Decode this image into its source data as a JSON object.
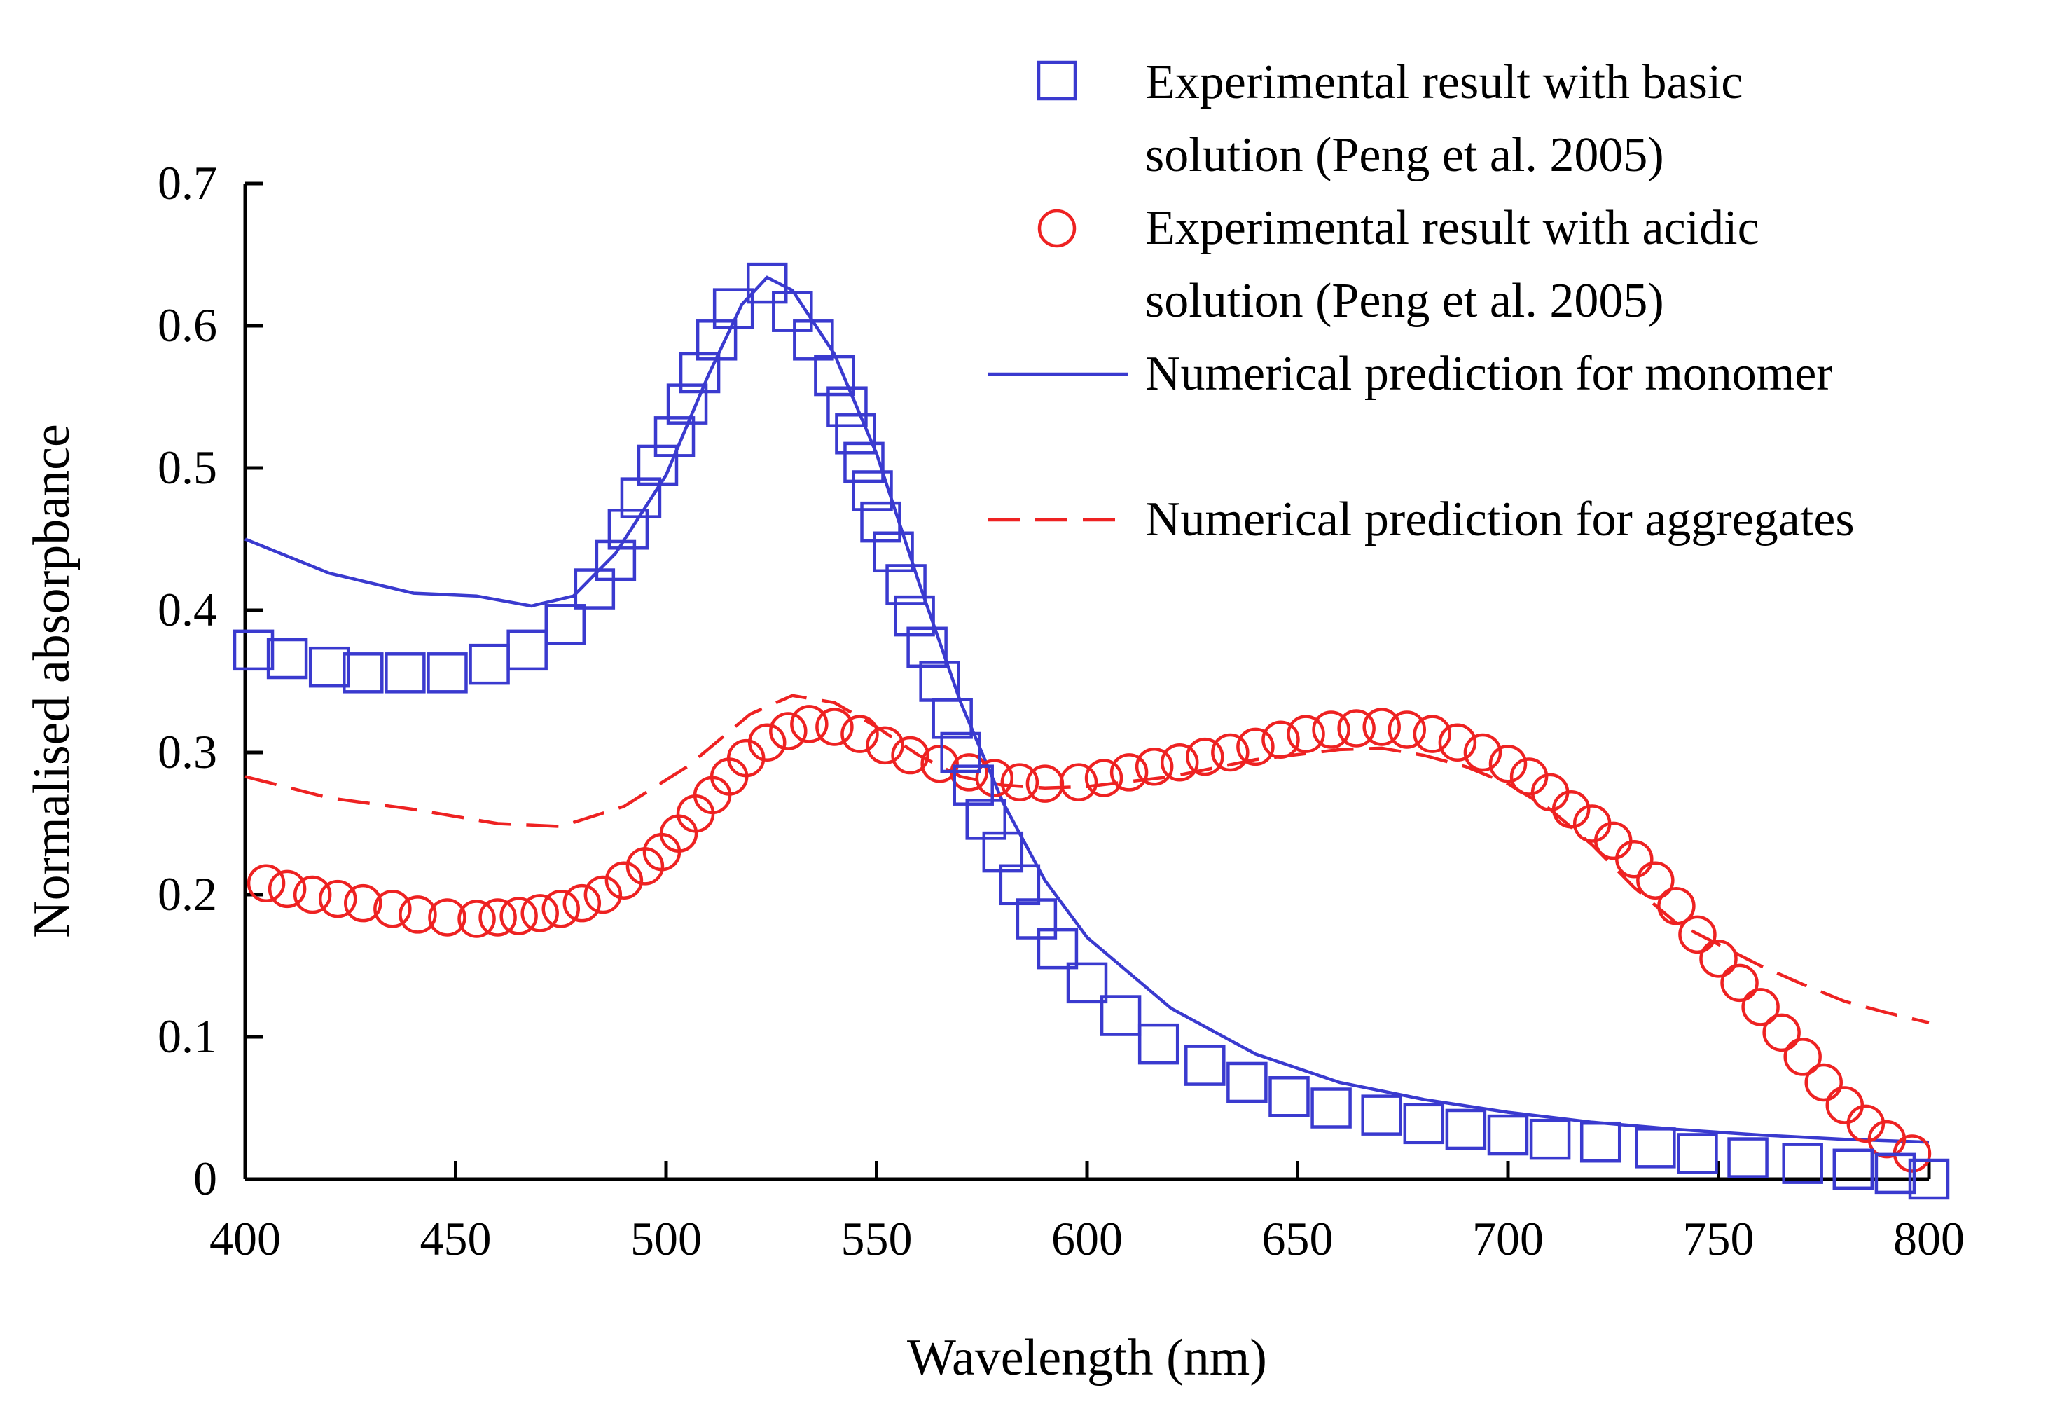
{
  "chart_data": {
    "type": "scatter",
    "title": "",
    "xlabel": "Wavelength (nm)",
    "ylabel": "Normalised absorpbance",
    "xlim": [
      400,
      800
    ],
    "ylim": [
      0,
      0.7
    ],
    "x_ticks": [
      "400",
      "450",
      "500",
      "550",
      "600",
      "650",
      "700",
      "750",
      "800"
    ],
    "y_ticks": [
      "0",
      "0.1",
      "0.2",
      "0.3",
      "0.4",
      "0.5",
      "0.6",
      "0.7"
    ],
    "grid": false,
    "legend_position": "top-right",
    "colors": {
      "basic": "#3a3acf",
      "acidic": "#ee2222"
    },
    "series": [
      {
        "name": "basic",
        "label_lines": [
          "Experimental result with basic",
          "solution (Peng et al. 2005)"
        ],
        "style": "square-markers",
        "points": [
          [
            402,
            0.372
          ],
          [
            410,
            0.366
          ],
          [
            420,
            0.36
          ],
          [
            428,
            0.356
          ],
          [
            438,
            0.356
          ],
          [
            448,
            0.356
          ],
          [
            458,
            0.362
          ],
          [
            467,
            0.372
          ],
          [
            476,
            0.39
          ],
          [
            483,
            0.415
          ],
          [
            488,
            0.435
          ],
          [
            491,
            0.457
          ],
          [
            494,
            0.479
          ],
          [
            498,
            0.502
          ],
          [
            502,
            0.522
          ],
          [
            505,
            0.545
          ],
          [
            508,
            0.567
          ],
          [
            512,
            0.59
          ],
          [
            516,
            0.612
          ],
          [
            524,
            0.63
          ],
          [
            530,
            0.61
          ],
          [
            535,
            0.59
          ],
          [
            540,
            0.565
          ],
          [
            543,
            0.543
          ],
          [
            545,
            0.524
          ],
          [
            547,
            0.504
          ],
          [
            549,
            0.484
          ],
          [
            551,
            0.462
          ],
          [
            554,
            0.441
          ],
          [
            557,
            0.418
          ],
          [
            559,
            0.396
          ],
          [
            562,
            0.374
          ],
          [
            565,
            0.35
          ],
          [
            568,
            0.324
          ],
          [
            570,
            0.3
          ],
          [
            573,
            0.277
          ],
          [
            576,
            0.253
          ],
          [
            580,
            0.23
          ],
          [
            584,
            0.207
          ],
          [
            588,
            0.183
          ],
          [
            593,
            0.162
          ],
          [
            600,
            0.138
          ],
          [
            608,
            0.115
          ],
          [
            617,
            0.095
          ],
          [
            628,
            0.08
          ],
          [
            638,
            0.068
          ],
          [
            648,
            0.058
          ],
          [
            658,
            0.05
          ],
          [
            670,
            0.045
          ],
          [
            680,
            0.039
          ],
          [
            690,
            0.035
          ],
          [
            700,
            0.031
          ],
          [
            710,
            0.028
          ],
          [
            722,
            0.026
          ],
          [
            735,
            0.022
          ],
          [
            745,
            0.018
          ],
          [
            757,
            0.015
          ],
          [
            770,
            0.011
          ],
          [
            782,
            0.007
          ],
          [
            792,
            0.004
          ],
          [
            800,
            0.0
          ]
        ]
      },
      {
        "name": "acidic",
        "label_lines": [
          "Experimental result with acidic",
          "solution (Peng et al. 2005)"
        ],
        "style": "circle-markers",
        "points": [
          [
            405,
            0.208
          ],
          [
            410,
            0.204
          ],
          [
            416,
            0.2
          ],
          [
            422,
            0.197
          ],
          [
            428,
            0.194
          ],
          [
            435,
            0.19
          ],
          [
            441,
            0.186
          ],
          [
            448,
            0.184
          ],
          [
            455,
            0.183
          ],
          [
            460,
            0.184
          ],
          [
            465,
            0.185
          ],
          [
            470,
            0.187
          ],
          [
            475,
            0.19
          ],
          [
            480,
            0.194
          ],
          [
            485,
            0.2
          ],
          [
            490,
            0.21
          ],
          [
            495,
            0.22
          ],
          [
            499,
            0.23
          ],
          [
            503,
            0.243
          ],
          [
            507,
            0.257
          ],
          [
            511,
            0.27
          ],
          [
            515,
            0.283
          ],
          [
            519,
            0.296
          ],
          [
            524,
            0.307
          ],
          [
            529,
            0.315
          ],
          [
            534,
            0.32
          ],
          [
            540,
            0.318
          ],
          [
            546,
            0.313
          ],
          [
            552,
            0.305
          ],
          [
            558,
            0.298
          ],
          [
            565,
            0.292
          ],
          [
            572,
            0.286
          ],
          [
            578,
            0.282
          ],
          [
            584,
            0.279
          ],
          [
            590,
            0.278
          ],
          [
            598,
            0.279
          ],
          [
            604,
            0.282
          ],
          [
            610,
            0.286
          ],
          [
            616,
            0.29
          ],
          [
            622,
            0.293
          ],
          [
            628,
            0.297
          ],
          [
            634,
            0.3
          ],
          [
            640,
            0.304
          ],
          [
            646,
            0.309
          ],
          [
            652,
            0.313
          ],
          [
            658,
            0.316
          ],
          [
            664,
            0.317
          ],
          [
            670,
            0.318
          ],
          [
            676,
            0.316
          ],
          [
            682,
            0.313
          ],
          [
            688,
            0.307
          ],
          [
            694,
            0.3
          ],
          [
            700,
            0.292
          ],
          [
            705,
            0.283
          ],
          [
            710,
            0.272
          ],
          [
            715,
            0.26
          ],
          [
            720,
            0.25
          ],
          [
            725,
            0.238
          ],
          [
            730,
            0.225
          ],
          [
            735,
            0.21
          ],
          [
            740,
            0.192
          ],
          [
            745,
            0.172
          ],
          [
            750,
            0.155
          ],
          [
            755,
            0.138
          ],
          [
            760,
            0.121
          ],
          [
            765,
            0.103
          ],
          [
            770,
            0.086
          ],
          [
            775,
            0.068
          ],
          [
            780,
            0.052
          ],
          [
            785,
            0.039
          ],
          [
            790,
            0.028
          ],
          [
            796,
            0.018
          ]
        ]
      },
      {
        "name": "monomer",
        "label_lines": [
          "Numerical prediction for monomer"
        ],
        "style": "solid-line",
        "points": [
          [
            400,
            0.45
          ],
          [
            420,
            0.426
          ],
          [
            440,
            0.412
          ],
          [
            455,
            0.41
          ],
          [
            468,
            0.403
          ],
          [
            478,
            0.41
          ],
          [
            488,
            0.44
          ],
          [
            500,
            0.495
          ],
          [
            510,
            0.565
          ],
          [
            518,
            0.615
          ],
          [
            524,
            0.634
          ],
          [
            530,
            0.625
          ],
          [
            540,
            0.58
          ],
          [
            550,
            0.51
          ],
          [
            560,
            0.42
          ],
          [
            570,
            0.335
          ],
          [
            580,
            0.265
          ],
          [
            590,
            0.21
          ],
          [
            600,
            0.17
          ],
          [
            620,
            0.12
          ],
          [
            640,
            0.088
          ],
          [
            660,
            0.068
          ],
          [
            680,
            0.056
          ],
          [
            700,
            0.047
          ],
          [
            720,
            0.04
          ],
          [
            740,
            0.035
          ],
          [
            760,
            0.031
          ],
          [
            780,
            0.028
          ],
          [
            800,
            0.026
          ]
        ]
      },
      {
        "name": "aggregates",
        "label_lines": [
          "Numerical prediction for aggregates"
        ],
        "style": "dashed-line",
        "points": [
          [
            400,
            0.283
          ],
          [
            420,
            0.268
          ],
          [
            440,
            0.26
          ],
          [
            460,
            0.25
          ],
          [
            475,
            0.248
          ],
          [
            490,
            0.262
          ],
          [
            505,
            0.29
          ],
          [
            520,
            0.327
          ],
          [
            530,
            0.34
          ],
          [
            540,
            0.335
          ],
          [
            550,
            0.318
          ],
          [
            560,
            0.298
          ],
          [
            570,
            0.283
          ],
          [
            580,
            0.277
          ],
          [
            590,
            0.275
          ],
          [
            600,
            0.276
          ],
          [
            620,
            0.283
          ],
          [
            640,
            0.295
          ],
          [
            660,
            0.302
          ],
          [
            670,
            0.303
          ],
          [
            680,
            0.298
          ],
          [
            690,
            0.29
          ],
          [
            700,
            0.278
          ],
          [
            710,
            0.26
          ],
          [
            720,
            0.235
          ],
          [
            730,
            0.205
          ],
          [
            740,
            0.18
          ],
          [
            750,
            0.165
          ],
          [
            760,
            0.15
          ],
          [
            770,
            0.137
          ],
          [
            780,
            0.125
          ],
          [
            790,
            0.117
          ],
          [
            800,
            0.11
          ]
        ]
      }
    ]
  }
}
